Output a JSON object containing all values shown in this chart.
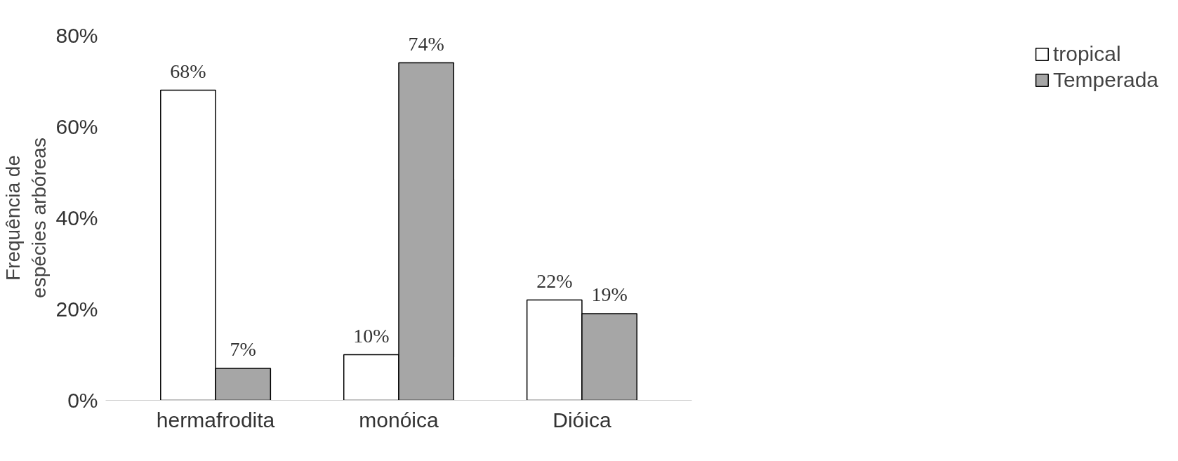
{
  "chart_data": {
    "type": "bar",
    "ylabel": "Frequência de\nespécies arbóreas",
    "categories": [
      "hermafrodita",
      "monóica",
      "Dióica"
    ],
    "series": [
      {
        "name": "tropical",
        "color": "#ffffff",
        "values": [
          68,
          10,
          22
        ],
        "value_labels": [
          "68%",
          "10%",
          "22%"
        ]
      },
      {
        "name": "Temperada",
        "color": "#a6a6a6",
        "values": [
          7,
          74,
          19
        ],
        "value_labels": [
          "7%",
          "74%",
          "19%"
        ]
      }
    ],
    "ylim": [
      0,
      80
    ],
    "yticks": [
      {
        "value": 0,
        "label": "0%"
      },
      {
        "value": 20,
        "label": "20%"
      },
      {
        "value": 40,
        "label": "40%"
      },
      {
        "value": 60,
        "label": "60%"
      },
      {
        "value": 80,
        "label": "80%"
      }
    ],
    "grid": false,
    "legend": "right"
  }
}
